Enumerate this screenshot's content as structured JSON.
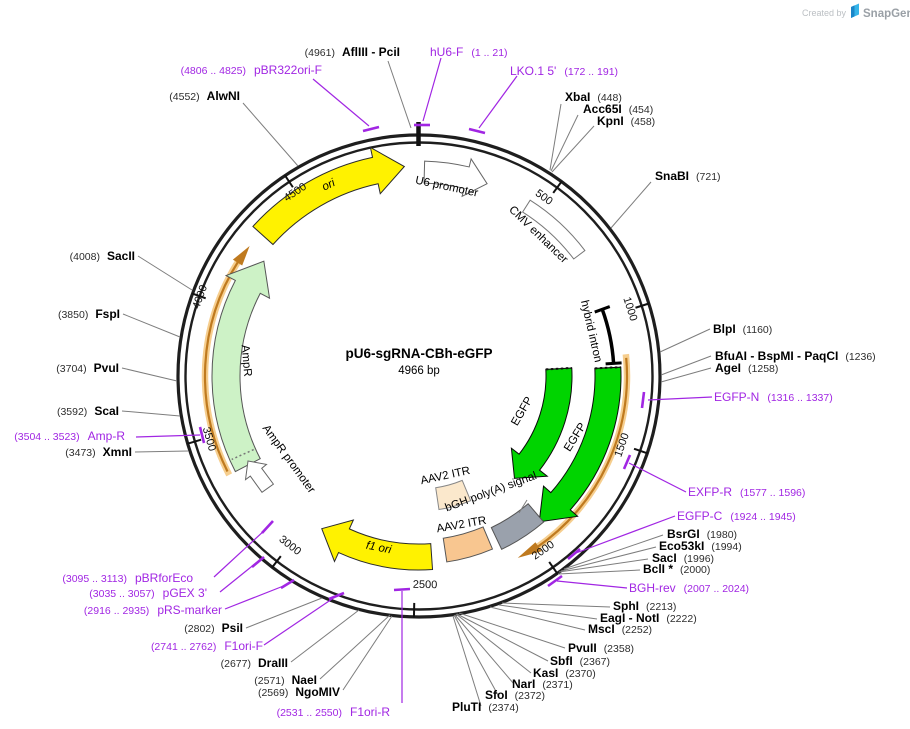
{
  "watermark": {
    "prefix": "Created by",
    "brand": "SnapGene"
  },
  "plasmid": {
    "name": "pU6-sgRNA-CBh-eGFP",
    "size": "4966 bp"
  },
  "ticks": [
    "500",
    "1000",
    "1500",
    "2000",
    "2500",
    "3000",
    "3500",
    "4000",
    "4500"
  ],
  "features": {
    "ori": "ori",
    "u6": "U6 promoter",
    "cmv": "CMV enhancer",
    "intron": "hybrid intron",
    "egfp_inner": "EGFP",
    "egfp_outer": "EGFP",
    "itr_upper": "AAV2 ITR",
    "bgh": "bGH poly(A) signal",
    "itr_lower": "AAV2 ITR",
    "f1": "f1 ori",
    "ampr": "AmpR",
    "ampr_prom": "AmpR promoter"
  },
  "enzymes": [
    {
      "name": "AflIII - PciI",
      "pos": "(4961)"
    },
    {
      "name": "AlwNI",
      "pos": "(4552)"
    },
    {
      "name": "XbaI",
      "pos": "(448)"
    },
    {
      "name": "Acc65I",
      "pos": "(454)"
    },
    {
      "name": "KpnI",
      "pos": "(458)"
    },
    {
      "name": "SnaBI",
      "pos": "(721)"
    },
    {
      "name": "BlpI",
      "pos": "(1160)"
    },
    {
      "name": "BfuAI - BspMI - PaqCI",
      "pos": "(1236)"
    },
    {
      "name": "AgeI",
      "pos": "(1258)"
    },
    {
      "name": "BsrGI",
      "pos": "(1980)"
    },
    {
      "name": "Eco53kI",
      "pos": "(1994)"
    },
    {
      "name": "SacI",
      "pos": "(1996)"
    },
    {
      "name": "BclI *",
      "pos": "(2000)"
    },
    {
      "name": "SphI",
      "pos": "(2213)"
    },
    {
      "name": "EagI - NotI",
      "pos": "(2222)"
    },
    {
      "name": "MscI",
      "pos": "(2252)"
    },
    {
      "name": "PvuII",
      "pos": "(2358)"
    },
    {
      "name": "SbfI",
      "pos": "(2367)"
    },
    {
      "name": "KasI",
      "pos": "(2370)"
    },
    {
      "name": "NarI",
      "pos": "(2371)"
    },
    {
      "name": "SfoI",
      "pos": "(2372)"
    },
    {
      "name": "PluTI",
      "pos": "(2374)"
    },
    {
      "name": "PsiI",
      "pos": "(2802)"
    },
    {
      "name": "DraIII",
      "pos": "(2677)"
    },
    {
      "name": "NaeI",
      "pos": "(2571)"
    },
    {
      "name": "NgoMIV",
      "pos": "(2569)"
    },
    {
      "name": "XmnI",
      "pos": "(3473)"
    },
    {
      "name": "ScaI",
      "pos": "(3592)"
    },
    {
      "name": "PvuI",
      "pos": "(3704)"
    },
    {
      "name": "FspI",
      "pos": "(3850)"
    },
    {
      "name": "SacII",
      "pos": "(4008)"
    }
  ],
  "primers": [
    {
      "name": "hU6-F",
      "range": "(1 .. 21)"
    },
    {
      "name": "LKO.1 5'",
      "range": "(172 .. 191)"
    },
    {
      "name": "pBR322ori-F",
      "range": "(4806 .. 4825)"
    },
    {
      "name": "EGFP-N",
      "range": "(1316 .. 1337)"
    },
    {
      "name": "EXFP-R",
      "range": "(1577 .. 1596)"
    },
    {
      "name": "EGFP-C",
      "range": "(1924 .. 1945)"
    },
    {
      "name": "BGH-rev",
      "range": "(2007 .. 2024)"
    },
    {
      "name": "F1ori-R",
      "range": "(2531 .. 2550)"
    },
    {
      "name": "F1ori-F",
      "range": "(2741 .. 2762)"
    },
    {
      "name": "pRS-marker",
      "range": "(2916 .. 2935)"
    },
    {
      "name": "pGEX 3'",
      "range": "(3035 .. 3057)"
    },
    {
      "name": "pBRforEco",
      "range": "(3095 .. 3113)"
    },
    {
      "name": "Amp-R",
      "range": "(3504 .. 3523)"
    }
  ],
  "colors": {
    "primer_purple": "#A126E3",
    "feature_green": "#00D400",
    "feature_pale_green": "#CDF2C6",
    "feature_yellow": "#FFF200",
    "orf_orange": "#BF7A1F",
    "orf_halo": "#F6CE8E",
    "itr_peach": "#F8C690",
    "itr_cream": "#FBE8CC",
    "polya_gray": "#9AA1AC"
  }
}
